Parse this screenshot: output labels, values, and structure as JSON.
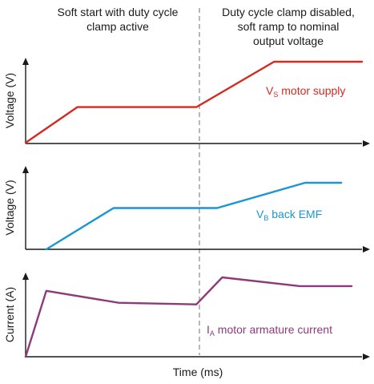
{
  "header": {
    "left_lines": [
      "Soft start with duty cycle",
      "clamp active"
    ],
    "right_lines": [
      "Duty cycle clamp disabled,",
      "soft ramp to nominal",
      "output voltage"
    ]
  },
  "x_axis": {
    "label": "Time (ms)"
  },
  "colors": {
    "vs": "#d42a20",
    "vb": "#1a96d4",
    "ia": "#8e3a7a",
    "axis": "#1a1a1a",
    "divider": "#999999"
  },
  "chart_data": [
    {
      "type": "line",
      "ylabel": "Voltage (V)",
      "series": [
        {
          "name": "V_S motor supply",
          "label_main": "V",
          "label_sub": "S",
          "label_rest": " motor supply",
          "x": [
            0,
            2,
            6.6,
            9.6,
            13
          ],
          "y": [
            0,
            0.44,
            0.44,
            1.0,
            1.0
          ]
        }
      ]
    },
    {
      "type": "line",
      "ylabel": "Voltage (V)",
      "series": [
        {
          "name": "V_B back EMF",
          "label_main": "V",
          "label_sub": "B",
          "label_rest": " back EMF",
          "x": [
            0.8,
            3.4,
            7.4,
            10.8,
            12.2
          ],
          "y": [
            0,
            0.62,
            0.62,
            1.0,
            1.0
          ]
        }
      ]
    },
    {
      "type": "line",
      "ylabel": "Current (A)",
      "series": [
        {
          "name": "I_A motor armature current",
          "label_main": "I",
          "label_sub": "A",
          "label_rest": " motor armature current",
          "x": [
            0,
            0.8,
            3.6,
            6.6,
            7.6,
            10.6,
            12.6
          ],
          "y": [
            0,
            0.83,
            0.68,
            0.66,
            1.0,
            0.89,
            0.89
          ]
        }
      ]
    }
  ]
}
